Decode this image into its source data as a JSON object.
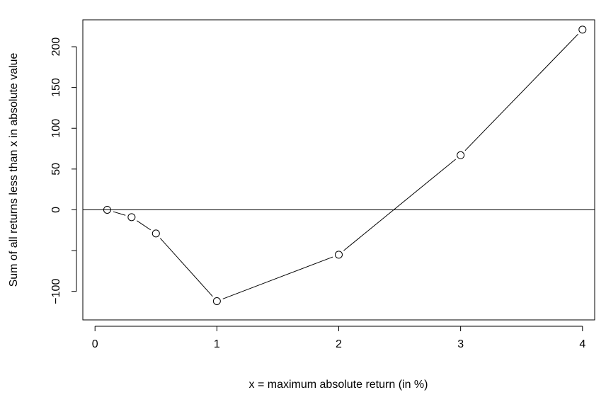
{
  "chart_data": {
    "type": "line",
    "title": "",
    "xlabel": "x = maximum absolute return (in %)",
    "ylabel": "Sum of all returns less than x in absolute value",
    "xlim": [
      -0.1,
      4.1
    ],
    "ylim": [
      -135,
      233
    ],
    "x_ticks": [
      0,
      1,
      2,
      3,
      4
    ],
    "x_tick_labels": [
      "0",
      "1",
      "2",
      "3",
      "4"
    ],
    "y_ticks": [
      -100,
      -50,
      0,
      50,
      100,
      150,
      200
    ],
    "y_tick_labels": [
      "−100",
      "",
      "0",
      "50",
      "100",
      "150",
      "200"
    ],
    "reference_line": {
      "y": 0
    },
    "grid": false,
    "legend": "none",
    "marker": "open-circle",
    "series": [
      {
        "x": [
          0.1,
          0.3,
          0.5,
          1,
          2,
          3,
          4
        ],
        "y": [
          0,
          -9,
          -29,
          -112,
          -55,
          67,
          221
        ]
      }
    ]
  }
}
